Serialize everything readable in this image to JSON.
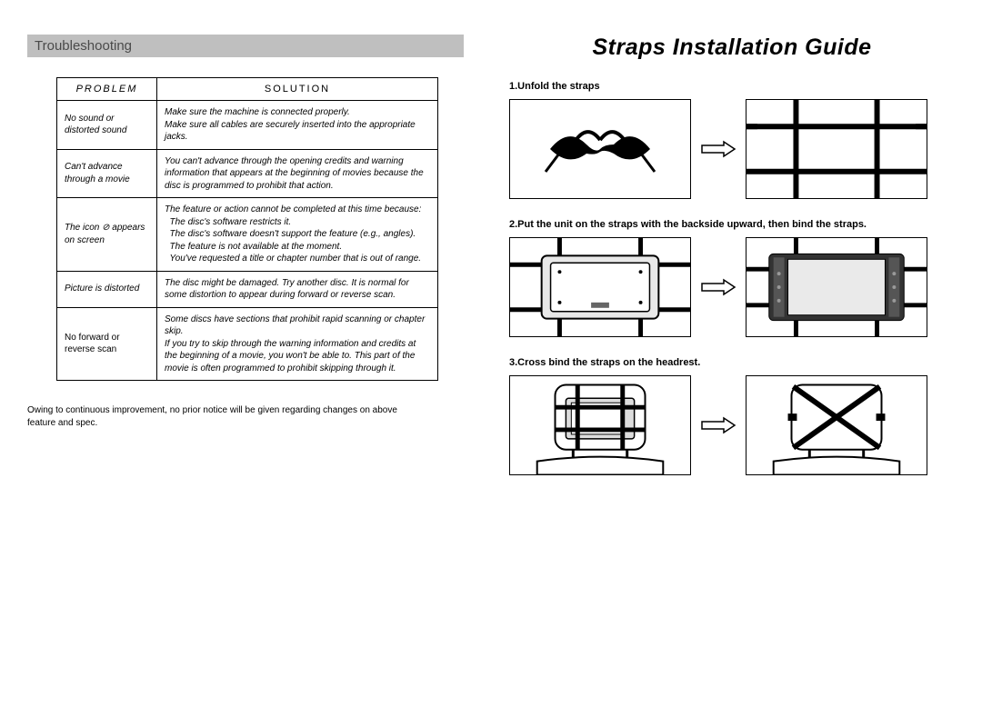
{
  "left": {
    "header": "Troubleshooting",
    "table": {
      "col_problem": "PROBLEM",
      "col_solution": "SOLUTION",
      "rows": [
        {
          "problem": "No sound or distorted sound",
          "solution": "Make sure the machine is connected properly.\nMake sure all cables are securely inserted into the appropriate jacks."
        },
        {
          "problem": "Can't advance through a movie",
          "solution": "You can't advance through the opening credits and warning information that appears at the beginning of movies because the disc is programmed to prohibit that action."
        },
        {
          "problem": "The icon ⊘ appears on screen",
          "solution": "The feature or action cannot be completed at this time because:\n  The disc's software restricts it.\n  The disc's software doesn't support the feature (e.g., angles).\n  The feature is not available at the moment.\n  You've requested a title or chapter number that is out of range."
        },
        {
          "problem": "Picture is distorted",
          "solution": "The disc might be damaged. Try another disc. It is normal for some distortion to appear during forward or reverse scan."
        },
        {
          "problem": "No forward or reverse scan",
          "solution": "Some discs have sections that prohibit rapid scanning or chapter skip.\nIf you try to skip through the warning information and credits at the beginning of a movie, you won't be able to. This part of the movie is often programmed to prohibit skipping through it."
        }
      ]
    },
    "footnote": "Owing to continuous improvement, no prior notice will be given regarding changes on above\n feature and spec."
  },
  "right": {
    "title": "Straps Installation Guide",
    "step1": "1.Unfold the straps",
    "step2": "2.Put the unit on the straps with the backside upward, then bind the straps.",
    "step3": "3.Cross bind the straps on the headrest."
  },
  "colors": {
    "header_bg": "#bfbfbf",
    "header_text": "#4a4a4a",
    "border": "#000000",
    "page_bg": "#ffffff"
  }
}
